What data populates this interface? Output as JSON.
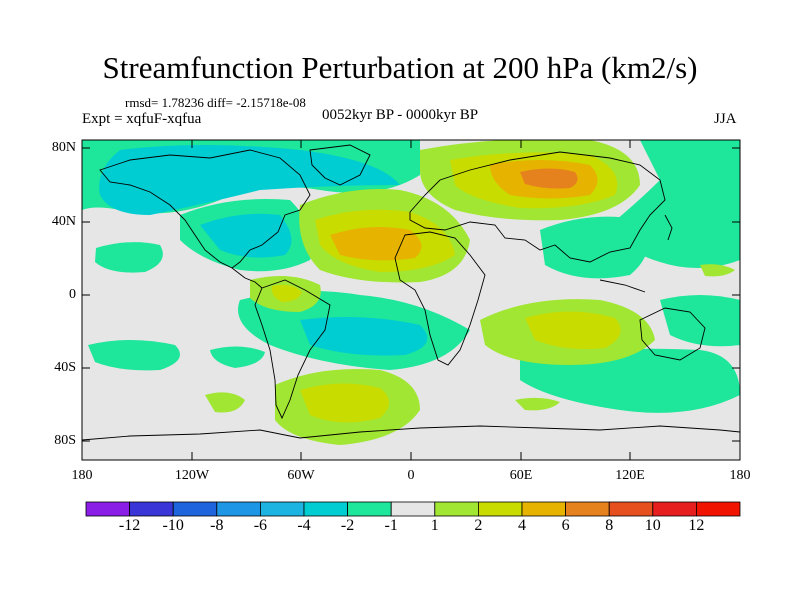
{
  "title": "Streamfunction Perturbation at 200 hPa (km2/s)",
  "stats": "rmsd= 1.78236 diff= -2.15718e-08",
  "experiment": "Expt = xqfuF-xqfua",
  "period": "0052kyr BP - 0000kyr BP",
  "season": "JJA",
  "lat_labels": [
    "80N",
    "40N",
    "0",
    "40S",
    "80S"
  ],
  "lon_labels": [
    "180",
    "120W",
    "60W",
    "0",
    "60E",
    "120E",
    "180"
  ],
  "colorbar": {
    "labels": [
      "-12",
      "-10",
      "-8",
      "-6",
      "-4",
      "-2",
      "-1",
      "1",
      "2",
      "4",
      "6",
      "8",
      "10",
      "12"
    ],
    "colors": [
      "#8a1ee6",
      "#3a35d6",
      "#1e64dc",
      "#1e96e6",
      "#1eb4e1",
      "#00cdd2",
      "#1ee69b",
      "#e6e6e6",
      "#a0e632",
      "#c8dc00",
      "#e6b400",
      "#e6821e",
      "#e6501e",
      "#e61e1e",
      "#f01400"
    ]
  },
  "colors": {
    "neutral": "#e6e6e6",
    "teal": "#00cdd2",
    "mint": "#1ee69b",
    "lime": "#a0e632",
    "yellow": "#c8dc00",
    "orange": "#e6b400",
    "dark_orange": "#e6821e"
  }
}
